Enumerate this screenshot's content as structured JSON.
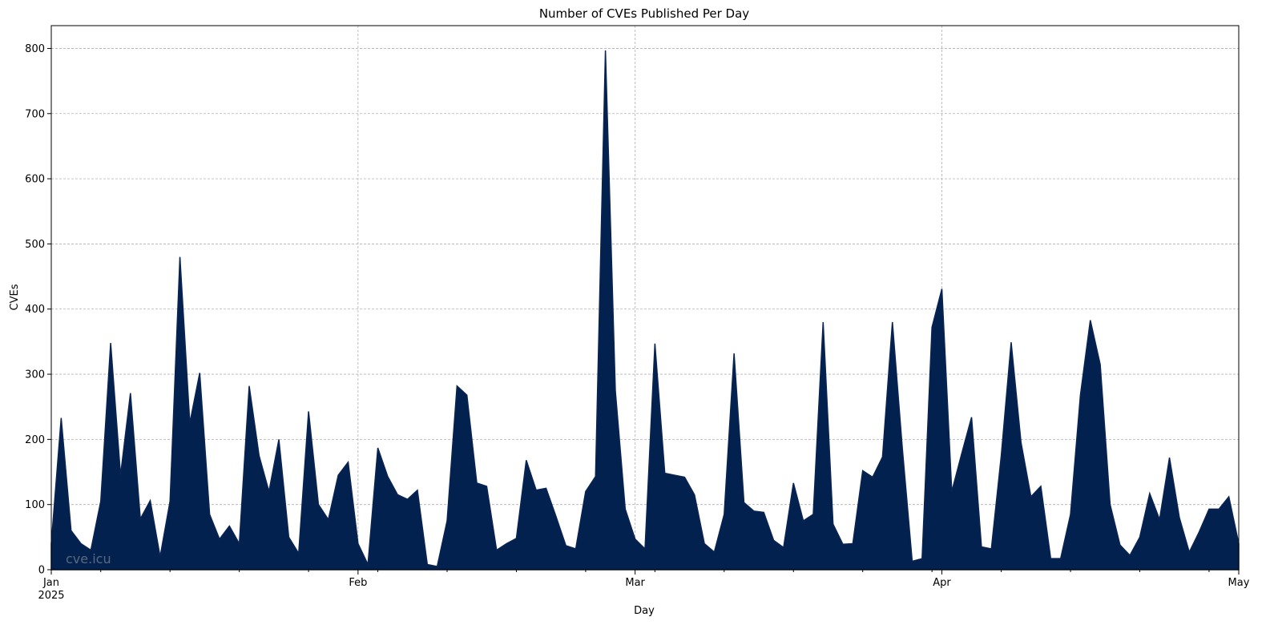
{
  "chart_data": {
    "type": "area",
    "title": "Number of CVEs Published Per Day",
    "xlabel": "Day",
    "ylabel": "CVEs",
    "watermark": "cve.icu",
    "color": "#03214f",
    "grid": true,
    "ylim": [
      0,
      835
    ],
    "xlim": [
      "2025-01-01",
      "2025-05-01"
    ],
    "y_ticks": [
      0,
      100,
      200,
      300,
      400,
      500,
      600,
      700,
      800
    ],
    "x_ticks": [
      {
        "date": "2025-01-01",
        "label": "Jan",
        "sublabel": "2025"
      },
      {
        "date": "2025-02-01",
        "label": "Feb",
        "sublabel": ""
      },
      {
        "date": "2025-03-01",
        "label": "Mar",
        "sublabel": ""
      },
      {
        "date": "2025-04-01",
        "label": "Apr",
        "sublabel": ""
      },
      {
        "date": "2025-05-01",
        "label": "May",
        "sublabel": ""
      }
    ],
    "start_date": "2025-01-01",
    "values": [
      40,
      233,
      60,
      40,
      30,
      105,
      348,
      145,
      271,
      78,
      106,
      20,
      105,
      480,
      225,
      302,
      85,
      47,
      67,
      40,
      282,
      175,
      120,
      200,
      50,
      25,
      243,
      100,
      77,
      145,
      165,
      40,
      8,
      187,
      143,
      115,
      108,
      122,
      8,
      5,
      75,
      282,
      268,
      133,
      128,
      30,
      40,
      48,
      168,
      122,
      125,
      82,
      37,
      32,
      120,
      143,
      797,
      275,
      93,
      47,
      32,
      347,
      148,
      145,
      142,
      115,
      40,
      27,
      85,
      332,
      103,
      90,
      88,
      45,
      34,
      133,
      75,
      85,
      380,
      70,
      39,
      40,
      152,
      142,
      173,
      380,
      187,
      13,
      17,
      372,
      431,
      120,
      178,
      234,
      35,
      32,
      175,
      349,
      195,
      112,
      128,
      17,
      17,
      85,
      268,
      383,
      315,
      100,
      38,
      22,
      50,
      117,
      77,
      172,
      80,
      27,
      58,
      93,
      93,
      112,
      40
    ]
  }
}
